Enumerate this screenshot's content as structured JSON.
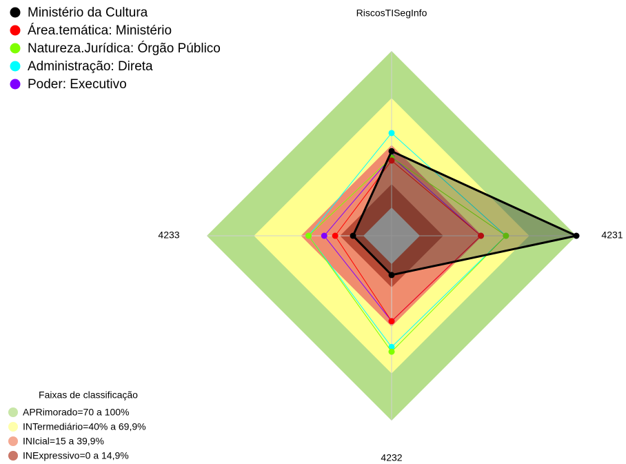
{
  "chart_data": {
    "type": "radar",
    "title": "RiscosTISegInfo",
    "categories": [
      "RiscosTISegInfo",
      "4231",
      "4232",
      "4233"
    ],
    "rlim": [
      0,
      100
    ],
    "series": [
      {
        "name": "Ministério da Cultura",
        "color": "#000000",
        "values": [
          36,
          100,
          7,
          6.6
        ]
      },
      {
        "name": "Área.temática: Ministério",
        "color": "#ff0000",
        "values": [
          30,
          39,
          36.5,
          18
        ]
      },
      {
        "name": "Natureza.Jurídica: Órgão Público",
        "color": "#7fff00",
        "values": [
          32,
          55,
          56,
          35
        ]
      },
      {
        "name": "Administração: Direta",
        "color": "#00ffff",
        "values": [
          47.6,
          55,
          53,
          35
        ]
      },
      {
        "name": "Poder: Executivo",
        "color": "#8000ff",
        "values": [
          32.6,
          39,
          36.5,
          25
        ]
      }
    ],
    "bands_title": "Faixas de classificação",
    "bands": [
      {
        "label": "APRimorado=70 a 100%",
        "range": [
          70,
          100
        ],
        "color": "#b5de8a"
      },
      {
        "label": "INTermediário=40% a 69,9%",
        "range": [
          40,
          69.9
        ],
        "color": "#ffff8f"
      },
      {
        "label": "INIcial=15 a 39,9%",
        "range": [
          15,
          39.9
        ],
        "color": "#f08c6e"
      },
      {
        "label": "INExpressivo=0 a 14,9%",
        "range": [
          0,
          14.9
        ],
        "color": "#b84a35"
      }
    ]
  }
}
